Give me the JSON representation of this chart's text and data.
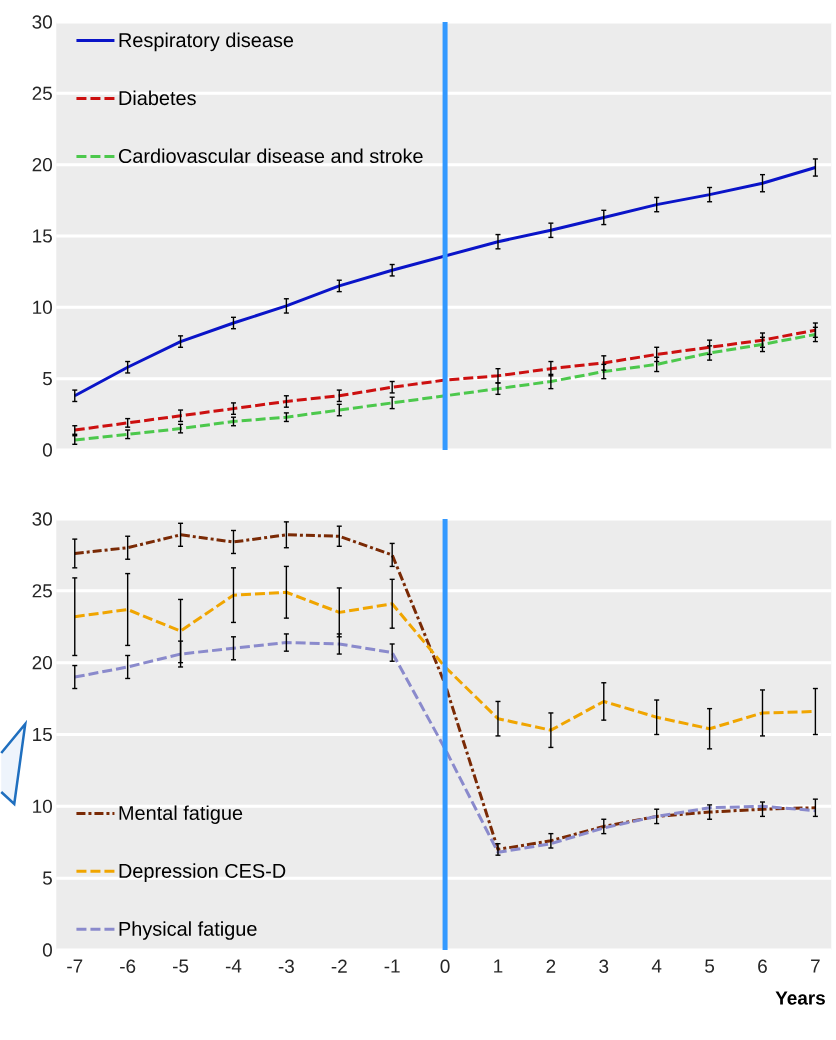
{
  "chart_data": [
    {
      "type": "line",
      "x": [
        -7,
        -6,
        -5,
        -4,
        -3,
        -2,
        -1,
        0,
        1,
        2,
        3,
        4,
        5,
        6,
        7
      ],
      "xlim": [
        -7.35,
        7.3
      ],
      "xticks": [
        -7,
        -6,
        -5,
        -4,
        -3,
        -2,
        -1,
        0,
        1,
        2,
        3,
        4,
        5,
        6,
        7
      ],
      "ylim": [
        0,
        30
      ],
      "yticks": [
        0,
        5,
        10,
        15,
        20,
        25,
        30
      ],
      "grid": "y",
      "legend": "top left",
      "tick_labels": "y",
      "ref_lines": [
        {
          "axis": "x",
          "value": 0,
          "color": "#3399ff"
        }
      ],
      "series": [
        {
          "name": "Respiratory disease",
          "color": "#0a14c8",
          "line_style": "solid",
          "values": [
            3.8,
            5.8,
            7.6,
            8.9,
            10.1,
            11.5,
            12.6,
            13.6,
            14.6,
            15.4,
            16.3,
            17.2,
            17.9,
            18.7,
            19.8
          ],
          "errors": [
            0.4,
            0.4,
            0.4,
            0.4,
            0.5,
            0.4,
            0.4,
            null,
            0.5,
            0.5,
            0.5,
            0.5,
            0.5,
            0.6,
            0.6
          ]
        },
        {
          "name": "Diabetes",
          "color": "#cc1010",
          "line_style": "dashed",
          "values": [
            1.4,
            1.9,
            2.4,
            2.9,
            3.4,
            3.8,
            4.4,
            4.9,
            5.2,
            5.7,
            6.1,
            6.7,
            7.2,
            7.7,
            8.4
          ],
          "errors": [
            0.3,
            0.3,
            0.4,
            0.4,
            0.4,
            0.4,
            0.4,
            null,
            0.5,
            0.5,
            0.5,
            0.5,
            0.5,
            0.5,
            0.5
          ]
        },
        {
          "name": "Cardiovascular disease and stroke",
          "color": "#4cc84c",
          "line_style": "dashed",
          "values": [
            0.7,
            1.1,
            1.5,
            2.0,
            2.3,
            2.8,
            3.3,
            3.8,
            4.3,
            4.8,
            5.5,
            6.0,
            6.8,
            7.4,
            8.1
          ],
          "errors": [
            0.3,
            0.3,
            0.3,
            0.3,
            0.3,
            0.4,
            0.4,
            null,
            0.4,
            0.5,
            0.5,
            0.5,
            0.5,
            0.5,
            0.5
          ]
        }
      ]
    },
    {
      "type": "line",
      "x": [
        -7,
        -6,
        -5,
        -4,
        -3,
        -2,
        -1,
        0,
        1,
        2,
        3,
        4,
        5,
        6,
        7
      ],
      "xlim": [
        -7.35,
        7.3
      ],
      "xticks": [
        -7,
        -6,
        -5,
        -4,
        -3,
        -2,
        -1,
        0,
        1,
        2,
        3,
        4,
        5,
        6,
        7
      ],
      "ylim": [
        0,
        30
      ],
      "yticks": [
        0,
        5,
        10,
        15,
        20,
        25,
        30
      ],
      "grid": "y",
      "legend": "bottom left",
      "xlabel": "Years",
      "ref_lines": [
        {
          "axis": "x",
          "value": 0,
          "color": "#3399ff"
        }
      ],
      "series": [
        {
          "name": "Mental fatigue",
          "color": "#7a2a05",
          "line_style": "dashdot",
          "values": [
            27.6,
            28.0,
            28.9,
            28.4,
            28.9,
            28.8,
            27.5,
            18.5,
            7.0,
            7.6,
            8.6,
            9.3,
            9.6,
            9.8,
            9.9
          ],
          "errors": [
            1.0,
            0.8,
            0.8,
            0.8,
            0.9,
            0.7,
            0.8,
            null,
            0.4,
            0.5,
            0.5,
            0.5,
            0.5,
            0.5,
            0.6
          ]
        },
        {
          "name": "Depression CES-D",
          "color": "#f0a500",
          "line_style": "dashed",
          "values": [
            23.2,
            23.7,
            22.2,
            24.7,
            24.9,
            23.5,
            24.1,
            19.7,
            16.1,
            15.3,
            17.3,
            16.2,
            15.4,
            16.5,
            16.6
          ],
          "errors": [
            2.7,
            2.5,
            2.2,
            1.9,
            1.8,
            1.7,
            1.7,
            null,
            1.2,
            1.2,
            1.3,
            1.2,
            1.4,
            1.6,
            1.6
          ]
        },
        {
          "name": "Physical fatigue",
          "color": "#8a8acc",
          "line_style": "dashed",
          "values": [
            19.0,
            19.7,
            20.6,
            21.0,
            21.4,
            21.3,
            20.7,
            14.0,
            6.8,
            7.4,
            8.5,
            9.3,
            9.9,
            10.0,
            9.7
          ],
          "errors": [
            0.8,
            0.8,
            0.9,
            0.8,
            0.6,
            0.7,
            0.6,
            null,
            null,
            null,
            null,
            null,
            null,
            null,
            null
          ]
        }
      ]
    }
  ]
}
